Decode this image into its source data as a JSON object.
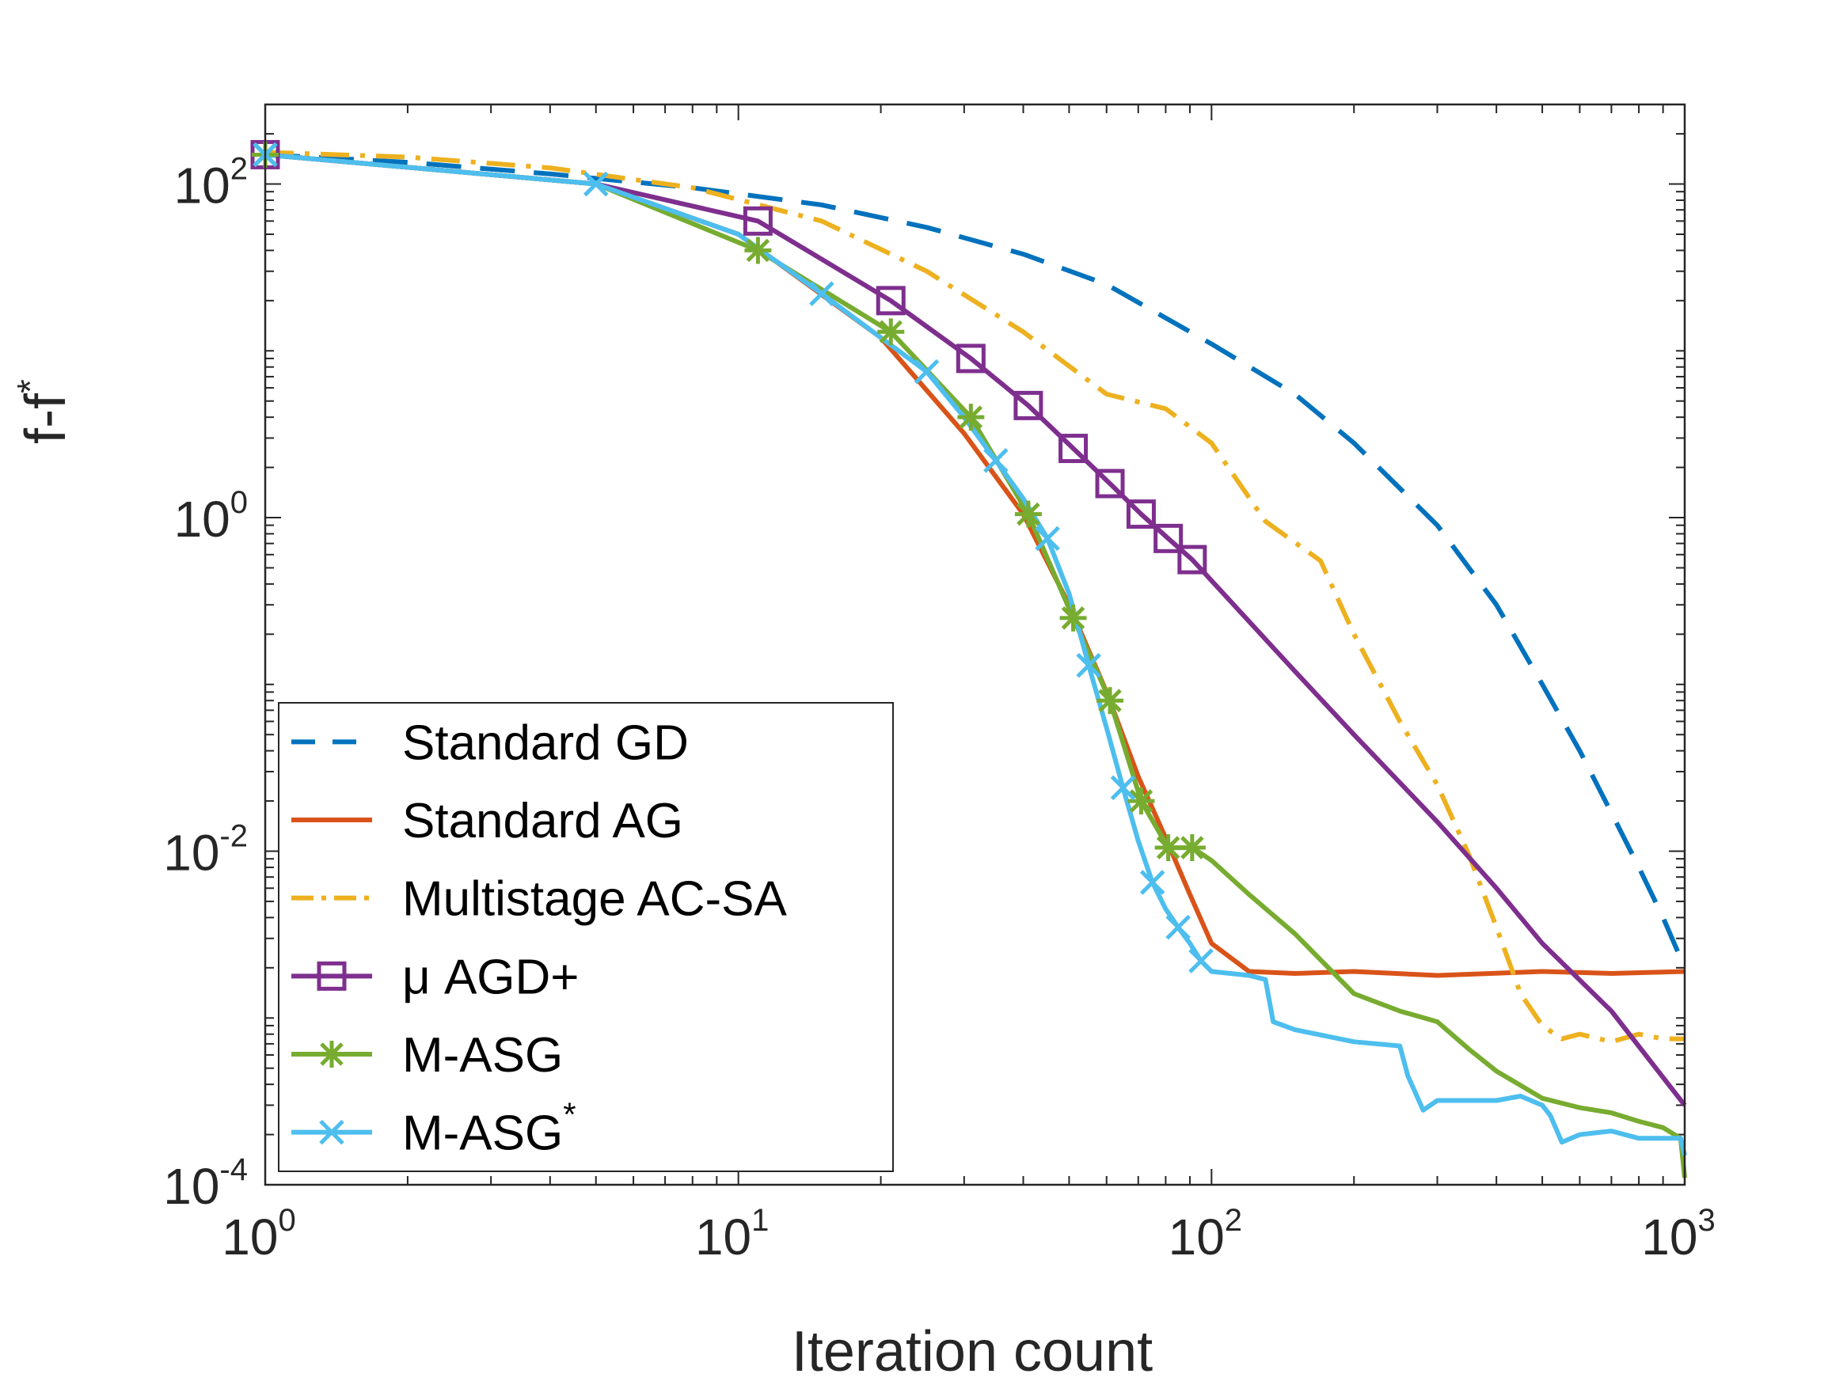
{
  "chart_data": {
    "type": "line",
    "title": "",
    "xlabel": "Iteration count",
    "ylabel": {
      "base": "f-f",
      "sup": "*"
    },
    "xscale": "log",
    "yscale": "log",
    "xlim": [
      1,
      1000
    ],
    "ylim": [
      0.0001,
      300
    ],
    "x_ticks": [
      {
        "value": 1,
        "base": "10",
        "exp": "0"
      },
      {
        "value": 10,
        "base": "10",
        "exp": "1"
      },
      {
        "value": 100,
        "base": "10",
        "exp": "2"
      },
      {
        "value": 1000,
        "base": "10",
        "exp": "3"
      }
    ],
    "y_ticks": [
      {
        "value": 100,
        "base": "10",
        "exp": "2"
      },
      {
        "value": 1,
        "base": "10",
        "exp": "0"
      },
      {
        "value": 0.01,
        "base": "10",
        "exp": "-2"
      },
      {
        "value": 0.0001,
        "base": "10",
        "exp": "-4"
      }
    ],
    "legend_position": "bottom-left",
    "series": [
      {
        "name": "Standard GD",
        "name_sup": "",
        "color": "#0072BD",
        "style": "dashed",
        "marker": "none",
        "x": [
          1,
          2,
          4,
          8,
          15,
          25,
          40,
          60,
          100,
          150,
          200,
          300,
          400,
          500,
          600,
          700,
          800,
          900,
          1000
        ],
        "y": [
          150,
          135,
          115,
          95,
          75,
          55,
          38,
          25,
          11,
          5.5,
          2.8,
          0.9,
          0.3,
          0.1,
          0.04,
          0.017,
          0.008,
          0.004,
          0.002
        ]
      },
      {
        "name": "Standard AG",
        "name_sup": "",
        "color": "#D95319",
        "style": "solid",
        "marker": "none",
        "x": [
          1,
          5,
          10,
          20,
          30,
          40,
          50,
          60,
          70,
          80,
          90,
          100,
          120,
          150,
          200,
          300,
          500,
          700,
          1000
        ],
        "y": [
          150,
          100,
          50,
          12,
          3.2,
          1.05,
          0.3,
          0.09,
          0.028,
          0.012,
          0.0055,
          0.0028,
          0.0019,
          0.00185,
          0.0019,
          0.0018,
          0.0019,
          0.00185,
          0.0019
        ]
      },
      {
        "name": "Multistage AC-SA",
        "name_sup": "",
        "color": "#EDB120",
        "style": "dashdot",
        "marker": "none",
        "x": [
          1,
          2,
          4,
          8,
          15,
          25,
          40,
          60,
          80,
          100,
          130,
          170,
          200,
          250,
          300,
          350,
          400,
          450,
          500,
          550,
          600,
          700,
          800,
          900,
          1000
        ],
        "y": [
          155,
          145,
          125,
          95,
          60,
          30,
          13,
          5.5,
          4.5,
          2.8,
          0.95,
          0.55,
          0.2,
          0.06,
          0.025,
          0.0095,
          0.0035,
          0.0014,
          0.0009,
          0.00075,
          0.0008,
          0.00072,
          0.0008,
          0.00075,
          0.00075
        ]
      },
      {
        "name": "μ AGD+",
        "name_sup": "",
        "color": "#7E2F8E",
        "style": "solid",
        "marker": "square",
        "x": [
          1,
          5,
          11,
          21,
          31,
          41,
          51,
          61,
          71,
          81,
          91,
          150,
          200,
          300,
          400,
          500,
          700,
          1000
        ],
        "y": [
          150,
          100,
          60,
          20,
          9,
          4.7,
          2.6,
          1.6,
          1.05,
          0.75,
          0.56,
          0.12,
          0.05,
          0.015,
          0.006,
          0.0028,
          0.0011,
          0.0003
        ],
        "marker_x": [
          1,
          11,
          21,
          31,
          41,
          51,
          61,
          71,
          81,
          91
        ]
      },
      {
        "name": "M-ASG",
        "name_sup": "",
        "color": "#77AC30",
        "style": "solid",
        "marker": "asterisk",
        "x": [
          1,
          5,
          11,
          21,
          31,
          41,
          51,
          61,
          71,
          81,
          91,
          100,
          120,
          150,
          200,
          250,
          300,
          350,
          400,
          500,
          600,
          700,
          800,
          900,
          980,
          1000
        ],
        "y": [
          150,
          100,
          40,
          13,
          4,
          1.05,
          0.25,
          0.08,
          0.02,
          0.0105,
          0.0105,
          0.0088,
          0.0055,
          0.0032,
          0.0014,
          0.0011,
          0.00095,
          0.00065,
          0.00048,
          0.00033,
          0.00029,
          0.00027,
          0.00024,
          0.00022,
          0.00019,
          0.00011
        ],
        "marker_x": [
          1,
          11,
          21,
          31,
          41,
          51,
          61,
          71,
          81,
          91
        ]
      },
      {
        "name": "M-ASG",
        "name_sup": "*",
        "color": "#4DBEEE",
        "style": "solid",
        "marker": "x",
        "x": [
          1,
          5,
          10,
          15,
          20,
          25,
          30,
          35,
          40,
          45,
          50,
          55,
          60,
          65,
          70,
          75,
          80,
          85,
          90,
          95,
          100,
          120,
          130,
          135,
          150,
          200,
          250,
          260,
          280,
          300,
          400,
          450,
          500,
          520,
          550,
          600,
          700,
          800,
          900,
          980,
          1000
        ],
        "y": [
          150,
          100,
          50,
          22,
          12,
          7.5,
          4,
          2.2,
          1.3,
          0.75,
          0.35,
          0.13,
          0.055,
          0.024,
          0.0115,
          0.0065,
          0.0045,
          0.0035,
          0.0028,
          0.0022,
          0.0019,
          0.0018,
          0.0017,
          0.00095,
          0.00085,
          0.00072,
          0.00068,
          0.00045,
          0.00028,
          0.00032,
          0.00032,
          0.00034,
          0.0003,
          0.00026,
          0.00018,
          0.0002,
          0.00021,
          0.00019,
          0.00019,
          0.00019,
          0.00015
        ],
        "marker_x": [
          1,
          5,
          15,
          25,
          35,
          45,
          55,
          65,
          75,
          85,
          95
        ]
      }
    ]
  }
}
